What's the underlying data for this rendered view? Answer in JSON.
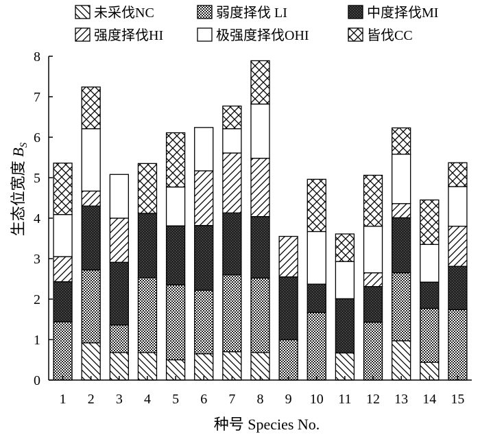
{
  "chart_data": {
    "type": "bar",
    "stacked": true,
    "xlabel": "种号 Species No.",
    "ylabel": "生态位宽度 ",
    "ylabel_var": "B",
    "ylabel_sub": "S",
    "ylim": [
      0,
      8
    ],
    "yticks": [
      0,
      1,
      2,
      3,
      4,
      5,
      6,
      7,
      8
    ],
    "grid": false,
    "legend_position": "top",
    "categories": [
      "1",
      "2",
      "3",
      "4",
      "5",
      "6",
      "7",
      "8",
      "9",
      "10",
      "11",
      "12",
      "13",
      "14",
      "15"
    ],
    "series": [
      {
        "name": "未采伐NC",
        "pattern": "backslash",
        "values": [
          0,
          0.92,
          0.68,
          0.68,
          0.5,
          0.65,
          0.7,
          0.68,
          0,
          0,
          0.67,
          0,
          0.97,
          0.44,
          0
        ]
      },
      {
        "name": "弱度择伐 LI",
        "pattern": "checker",
        "values": [
          1.44,
          1.8,
          0.68,
          1.85,
          1.85,
          1.57,
          1.9,
          1.84,
          1.0,
          1.67,
          0,
          1.43,
          1.68,
          1.33,
          1.74
        ]
      },
      {
        "name": "中度择伐MI",
        "pattern": "dark",
        "values": [
          0.99,
          1.58,
          1.55,
          1.59,
          1.46,
          1.6,
          1.53,
          1.52,
          1.55,
          0.7,
          1.34,
          0.88,
          1.36,
          0.65,
          1.07
        ]
      },
      {
        "name": "强度择伐HI",
        "pattern": "slash",
        "values": [
          0.62,
          0.37,
          1.09,
          0,
          0,
          1.35,
          1.48,
          1.44,
          1.0,
          0,
          0,
          0.34,
          0.35,
          0,
          0.99
        ]
      },
      {
        "name": "极强度择伐OHI",
        "pattern": "white",
        "values": [
          1.04,
          1.54,
          1.08,
          0,
          0.96,
          1.07,
          0.6,
          1.34,
          0,
          1.3,
          0.92,
          1.15,
          1.22,
          0.93,
          0.98
        ]
      },
      {
        "name": "皆伐CC",
        "pattern": "crosshatch",
        "values": [
          1.27,
          1.03,
          0,
          1.23,
          1.34,
          0,
          0.56,
          1.07,
          0,
          1.29,
          0.68,
          1.26,
          0.65,
          1.1,
          0.59
        ]
      }
    ]
  }
}
